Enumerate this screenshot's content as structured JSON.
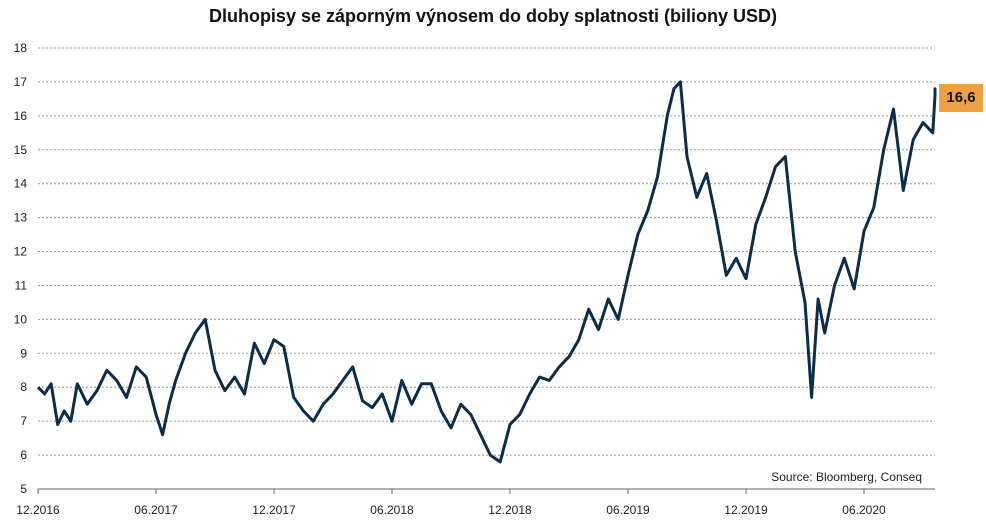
{
  "chart_data": {
    "type": "line",
    "title": "Dluhopisy se záporným výnosem do doby splatnosti (biliony USD)",
    "source": "Source: Bloomberg, Conseq",
    "last_value_label": "16,6",
    "ylim": [
      5,
      18
    ],
    "yticks": [
      5,
      6,
      7,
      8,
      9,
      10,
      11,
      12,
      13,
      14,
      15,
      16,
      17,
      18
    ],
    "xticks": [
      "12.2016",
      "06.2017",
      "12.2017",
      "06.2018",
      "12.2018",
      "06.2019",
      "12.2019",
      "06.2020"
    ],
    "grid": true,
    "colors": {
      "line": "#0b2d4a",
      "badge": "#f0a040",
      "grid": "#999999"
    },
    "series": [
      {
        "x": [
          "2016-12",
          "2016-12",
          "2016-12",
          "2017-01",
          "2017-01",
          "2017-01",
          "2017-02",
          "2017-02",
          "2017-03",
          "2017-03",
          "2017-04",
          "2017-04",
          "2017-05",
          "2017-05",
          "2017-06",
          "2017-06",
          "2017-06",
          "2017-07",
          "2017-07",
          "2017-08",
          "2017-08",
          "2017-09",
          "2017-09",
          "2017-10",
          "2017-10",
          "2017-11",
          "2017-11",
          "2017-12",
          "2017-12",
          "2018-01",
          "2018-01",
          "2018-02",
          "2018-02",
          "2018-03",
          "2018-03",
          "2018-04",
          "2018-04",
          "2018-05",
          "2018-05",
          "2018-06",
          "2018-06",
          "2018-07",
          "2018-07",
          "2018-08",
          "2018-08",
          "2018-09",
          "2018-09",
          "2018-10",
          "2018-10",
          "2018-11",
          "2018-11",
          "2018-12",
          "2018-12",
          "2019-01",
          "2019-01",
          "2019-02",
          "2019-02",
          "2019-03",
          "2019-03",
          "2019-04",
          "2019-04",
          "2019-05",
          "2019-05",
          "2019-06",
          "2019-06",
          "2019-07",
          "2019-07",
          "2019-08",
          "2019-08",
          "2019-08",
          "2019-09",
          "2019-09",
          "2019-10",
          "2019-10",
          "2019-11",
          "2019-11",
          "2019-12",
          "2019-12",
          "2020-01",
          "2020-01",
          "2020-02",
          "2020-02",
          "2020-03",
          "2020-03",
          "2020-03",
          "2020-04",
          "2020-04",
          "2020-05",
          "2020-05",
          "2020-06",
          "2020-06",
          "2020-07",
          "2020-07",
          "2020-08",
          "2020-08",
          "2020-09",
          "2020-09",
          "2020-10",
          "2020-10",
          "2020-11",
          "2020-11"
        ],
        "y": [
          8.0,
          7.8,
          8.1,
          6.9,
          7.3,
          7.0,
          8.1,
          7.5,
          7.9,
          8.5,
          8.2,
          7.7,
          8.6,
          8.3,
          7.2,
          6.6,
          7.5,
          8.2,
          9.0,
          9.6,
          10.0,
          8.5,
          7.9,
          8.3,
          7.8,
          9.3,
          8.7,
          9.4,
          9.2,
          7.7,
          7.3,
          7.0,
          7.5,
          7.8,
          8.2,
          8.6,
          7.6,
          7.4,
          7.8,
          7.0,
          8.2,
          7.5,
          8.1,
          8.1,
          7.3,
          6.8,
          7.5,
          7.2,
          6.6,
          6.0,
          5.8,
          6.9,
          7.2,
          7.8,
          8.3,
          8.2,
          8.6,
          8.9,
          9.4,
          10.3,
          9.7,
          10.6,
          10.0,
          11.3,
          12.5,
          13.2,
          14.2,
          16.0,
          16.8,
          17.0,
          14.8,
          13.6,
          14.3,
          12.9,
          11.3,
          11.8,
          11.2,
          12.8,
          13.6,
          14.5,
          14.8,
          12.0,
          10.5,
          7.7,
          10.6,
          9.6,
          11.0,
          11.8,
          10.9,
          12.6,
          13.3,
          15.0,
          16.2,
          13.8,
          15.3,
          15.8,
          15.5,
          16.6,
          16.8,
          16.6,
          16.6
        ]
      }
    ]
  }
}
